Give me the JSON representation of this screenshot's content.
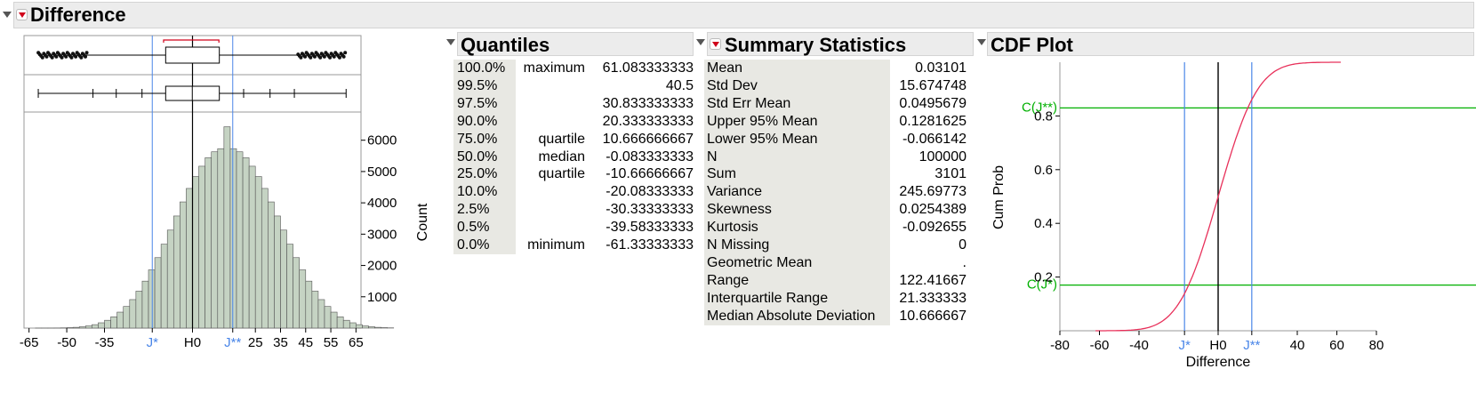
{
  "main_header": {
    "title": "Difference"
  },
  "quantiles": {
    "title": "Quantiles",
    "rows": [
      {
        "pct": "100.0%",
        "label": "maximum",
        "value": "61.083333333"
      },
      {
        "pct": "99.5%",
        "label": "",
        "value": "40.5"
      },
      {
        "pct": "97.5%",
        "label": "",
        "value": "30.833333333"
      },
      {
        "pct": "90.0%",
        "label": "",
        "value": "20.333333333"
      },
      {
        "pct": "75.0%",
        "label": "quartile",
        "value": "10.666666667"
      },
      {
        "pct": "50.0%",
        "label": "median",
        "value": "-0.083333333"
      },
      {
        "pct": "25.0%",
        "label": "quartile",
        "value": "-10.66666667"
      },
      {
        "pct": "10.0%",
        "label": "",
        "value": "-20.08333333"
      },
      {
        "pct": "2.5%",
        "label": "",
        "value": "-30.33333333"
      },
      {
        "pct": "0.5%",
        "label": "",
        "value": "-39.58333333"
      },
      {
        "pct": "0.0%",
        "label": "minimum",
        "value": "-61.33333333"
      }
    ]
  },
  "summary": {
    "title": "Summary Statistics",
    "rows": [
      {
        "label": "Mean",
        "value": "0.03101"
      },
      {
        "label": "Std Dev",
        "value": "15.674748"
      },
      {
        "label": "Std Err Mean",
        "value": "0.0495679"
      },
      {
        "label": "Upper 95% Mean",
        "value": "0.1281625"
      },
      {
        "label": "Lower 95% Mean",
        "value": "-0.066142"
      },
      {
        "label": "N",
        "value": "100000"
      },
      {
        "label": "Sum",
        "value": "3101"
      },
      {
        "label": "Variance",
        "value": "245.69773"
      },
      {
        "label": "Skewness",
        "value": "0.0254389"
      },
      {
        "label": "Kurtosis",
        "value": "-0.092655"
      },
      {
        "label": "N Missing",
        "value": "0"
      },
      {
        "label": "Geometric Mean",
        "value": "."
      },
      {
        "label": "Range",
        "value": "122.41667"
      },
      {
        "label": "Interquartile Range",
        "value": "21.333333"
      },
      {
        "label": "Median Absolute Deviation",
        "value": "10.666667"
      }
    ]
  },
  "cdf_header": {
    "title": "CDF Plot"
  },
  "colors": {
    "bar_fill": "#c5d3c3",
    "bar_stroke": "#555555",
    "ref_blue": "#4a86e8",
    "ref_green": "#00b000",
    "curve": "#e8305a",
    "bracket": "#d0021b"
  },
  "chart_data": [
    {
      "type": "bar",
      "title": "",
      "xlabel": "",
      "ylabel": "Count",
      "xlim": [
        -67,
        67
      ],
      "ylim": [
        0,
        6900
      ],
      "bin_width": 2.5,
      "bin_start": -62.5,
      "values": [
        1,
        1,
        2,
        4,
        8,
        14,
        25,
        43,
        70,
        110,
        170,
        250,
        360,
        510,
        690,
        910,
        1180,
        1500,
        1860,
        2250,
        2680,
        3130,
        3580,
        4030,
        4460,
        4840,
        5170,
        5440,
        5630,
        5730,
        6430,
        5730,
        5630,
        5440,
        5170,
        4840,
        4460,
        4030,
        3580,
        3130,
        2680,
        2250,
        1860,
        1500,
        1180,
        910,
        690,
        510,
        360,
        250,
        170,
        110,
        70,
        43,
        25,
        14,
        8
      ],
      "xticks": [
        {
          "value": -65,
          "label": "-65"
        },
        {
          "value": -50,
          "label": "-50"
        },
        {
          "value": -35,
          "label": "-35"
        },
        {
          "value": -16,
          "label": "J*",
          "ref": true
        },
        {
          "value": 0,
          "label": "H0"
        },
        {
          "value": 16,
          "label": "J**",
          "ref": true
        },
        {
          "value": 25,
          "label": "25"
        },
        {
          "value": 35,
          "label": "35"
        },
        {
          "value": 45,
          "label": "45"
        },
        {
          "value": 55,
          "label": "55"
        },
        {
          "value": 65,
          "label": "65"
        }
      ],
      "yticks": [
        1000,
        2000,
        3000,
        4000,
        5000,
        6000
      ],
      "reference_lines": [
        -16,
        16
      ],
      "boxplot": {
        "min": -61.33,
        "q1": -10.67,
        "median": -0.083,
        "q3": 10.67,
        "max": 61.08,
        "whisker_low": -42.5,
        "whisker_high": 42.5,
        "shortest_half": [
          -11.5,
          10.5
        ]
      },
      "quantile_ticks": [
        -61.33,
        -39.58,
        -30.33,
        -20.08,
        20.33,
        30.83,
        40.5,
        61.08
      ],
      "grid": false
    },
    {
      "type": "line",
      "title": "",
      "xlabel": "Difference",
      "ylabel": "Cum Prob",
      "xlim": [
        -80,
        80
      ],
      "ylim": [
        0,
        1
      ],
      "mean": 0.031,
      "sd": 15.67,
      "xticks": [
        {
          "value": -80,
          "label": "-80"
        },
        {
          "value": -60,
          "label": "-60"
        },
        {
          "value": -40,
          "label": "-40"
        },
        {
          "value": -17,
          "label": "J*",
          "ref": true
        },
        {
          "value": 0,
          "label": "H0"
        },
        {
          "value": 17,
          "label": "J**",
          "ref": true
        },
        {
          "value": 40,
          "label": "40"
        },
        {
          "value": 60,
          "label": "60"
        },
        {
          "value": 80,
          "label": "80"
        }
      ],
      "yticks": [
        {
          "value": 0.2,
          "label": "0.2"
        },
        {
          "value": 0.4,
          "label": "0.4"
        },
        {
          "value": 0.6,
          "label": "0.6"
        },
        {
          "value": 0.8,
          "label": "0.8"
        }
      ],
      "hlines": [
        {
          "value": 0.17,
          "label": "C(J*)"
        },
        {
          "value": 0.83,
          "label": "C(J**)"
        }
      ],
      "vlines": [
        -17,
        17
      ],
      "h0": 0,
      "grid": false
    }
  ]
}
